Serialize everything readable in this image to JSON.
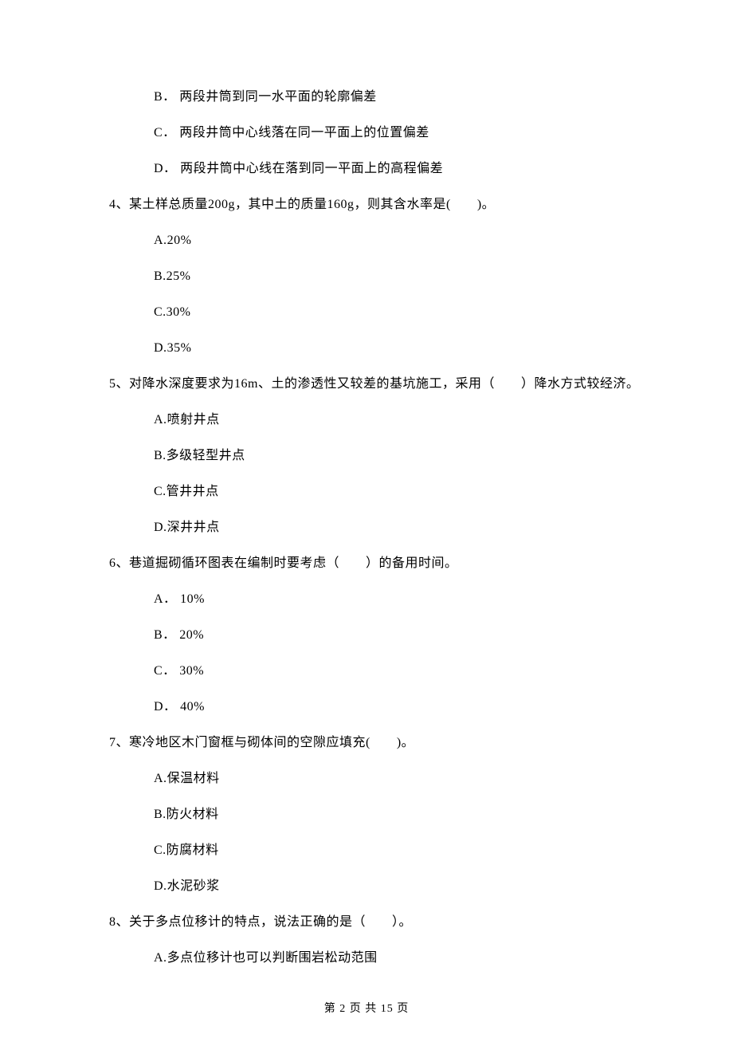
{
  "options_top": [
    {
      "label": "B．",
      "text": "两段井筒到同一水平面的轮廓偏差"
    },
    {
      "label": "C．",
      "text": "两段井筒中心线落在同一平面上的位置偏差"
    },
    {
      "label": "D．",
      "text": "两段井筒中心线在落到同一平面上的高程偏差"
    }
  ],
  "questions": [
    {
      "number": "4、",
      "stem": "某土样总质量200g，其中土的质量160g，则其含水率是(　　)。",
      "options": [
        {
          "label": "A.",
          "text": "20%"
        },
        {
          "label": "B.",
          "text": "25%"
        },
        {
          "label": "C.",
          "text": "30%"
        },
        {
          "label": "D.",
          "text": "35%"
        }
      ]
    },
    {
      "number": "5、",
      "stem": "对降水深度要求为16m、土的渗透性又较差的基坑施工，采用（　　）降水方式较经济。",
      "options": [
        {
          "label": "A.",
          "text": "喷射井点"
        },
        {
          "label": "B.",
          "text": "多级轻型井点"
        },
        {
          "label": "C.",
          "text": "管井井点"
        },
        {
          "label": "D.",
          "text": "深井井点"
        }
      ]
    },
    {
      "number": "6、",
      "stem": "巷道掘砌循环图表在编制时要考虑（　　）的备用时间。",
      "options": [
        {
          "label": "A．",
          "text": " 10%"
        },
        {
          "label": "B．",
          "text": " 20%"
        },
        {
          "label": "C．",
          "text": " 30%"
        },
        {
          "label": "D．",
          "text": " 40%"
        }
      ]
    },
    {
      "number": "7、",
      "stem": "寒冷地区木门窗框与砌体间的空隙应填充(　　)。",
      "options": [
        {
          "label": "A.",
          "text": "保温材料"
        },
        {
          "label": "B.",
          "text": "防火材料"
        },
        {
          "label": "C.",
          "text": "防腐材料"
        },
        {
          "label": "D.",
          "text": "水泥砂浆"
        }
      ]
    },
    {
      "number": "8、",
      "stem": "关于多点位移计的特点，说法正确的是（　　）。",
      "options": [
        {
          "label": "A.",
          "text": "多点位移计也可以判断围岩松动范围"
        }
      ]
    }
  ],
  "footer": "第 2 页 共 15 页"
}
